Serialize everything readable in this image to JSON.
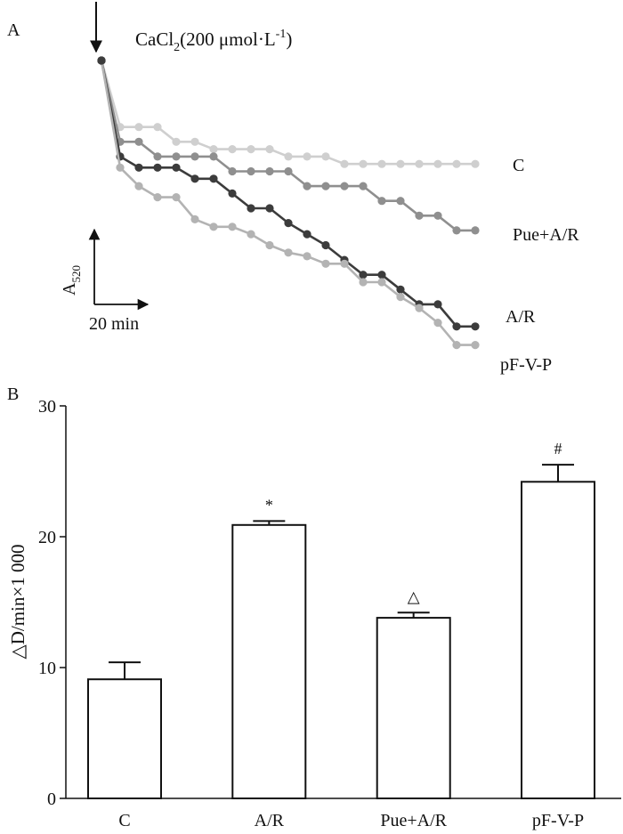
{
  "chart_data": [
    {
      "type": "line",
      "panel_label": "A",
      "annotation": {
        "prefix": "CaCl",
        "subscript": "2",
        "text": "(200 μmol·L",
        "superscript": "-1",
        "suffix": ")"
      },
      "y_scale": {
        "label": "A",
        "subscript": "520"
      },
      "x_scale": {
        "label": "20 min"
      },
      "x": [
        0,
        1,
        2,
        3,
        4,
        5,
        6,
        7,
        8,
        9,
        10,
        11,
        12,
        13,
        14,
        15,
        16,
        17,
        18,
        19,
        20
      ],
      "series": [
        {
          "name": "C",
          "color": "#cfcfcf",
          "values": [
            100,
            82,
            82,
            82,
            78,
            78,
            76,
            76,
            76,
            76,
            74,
            74,
            74,
            72,
            72,
            72,
            72,
            72,
            72,
            72,
            72
          ]
        },
        {
          "name": "Pue+A/R",
          "color": "#8f8f8f",
          "values": [
            100,
            78,
            78,
            74,
            74,
            74,
            74,
            70,
            70,
            70,
            70,
            66,
            66,
            66,
            66,
            62,
            62,
            58,
            58,
            54,
            54
          ]
        },
        {
          "name": "A/R",
          "color": "#3c3c3c",
          "values": [
            100,
            74,
            71,
            71,
            71,
            68,
            68,
            64,
            60,
            60,
            56,
            53,
            50,
            46,
            42,
            42,
            38,
            34,
            34,
            28,
            28
          ]
        },
        {
          "name": "pF-V-P",
          "color": "#b3b3b3",
          "values": [
            100,
            71,
            66,
            63,
            63,
            57,
            55,
            55,
            53,
            50,
            48,
            47,
            45,
            45,
            40,
            40,
            36,
            33,
            29,
            23,
            23
          ]
        }
      ]
    },
    {
      "type": "bar",
      "panel_label": "B",
      "categories": [
        "C",
        "A/R",
        "Pue+A/R",
        "pF-V-P"
      ],
      "values": [
        9.1,
        20.9,
        13.8,
        24.2
      ],
      "errors": [
        1.3,
        0.3,
        0.4,
        1.3
      ],
      "significance": [
        "",
        "*",
        "△",
        "#"
      ],
      "ylabel": "△D/min×1 000",
      "ylim": [
        0,
        30
      ],
      "yticks": [
        0,
        10,
        20,
        30
      ]
    }
  ]
}
